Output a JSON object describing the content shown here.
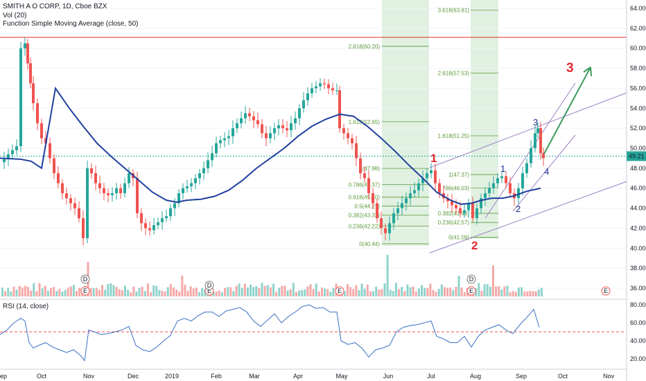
{
  "legend": {
    "title": "SMITH A O CORP, 1D, Cboe BZX",
    "volume": "Vol (20)",
    "sma": "Function Simple Moving Average (close, 50)",
    "rsi": "RSI (14, close)"
  },
  "price_axis": {
    "ticks": [
      "64.00",
      "62.00",
      "60.00",
      "58.00",
      "56.00",
      "54.00",
      "52.00",
      "50.00",
      "48.00",
      "46.00",
      "44.00",
      "42.00",
      "40.00",
      "38.00",
      "36.00"
    ],
    "last_price": "49.21"
  },
  "rsi_axis": {
    "ticks": [
      "80.00",
      "60.00",
      "40.00",
      "20.00"
    ]
  },
  "time_axis": {
    "ticks": [
      "ep",
      "Oct",
      "Nov",
      "Dec",
      "2019",
      "Feb",
      "Mar",
      "Apr",
      "May",
      "Jun",
      "Jul",
      "Aug",
      "Sep",
      "Oct",
      "Nov"
    ]
  },
  "fib_left": [
    {
      "label": "2.618(60.20)",
      "price": 60.2
    },
    {
      "label": "1.618(52.65)",
      "price": 52.65
    },
    {
      "label": "1(47.98)",
      "price": 47.98
    },
    {
      "label": "0.786(46.37)",
      "price": 46.37
    },
    {
      "label": "0.618(45.10)",
      "price": 45.1
    },
    {
      "label": "0.5(44.21)",
      "price": 44.21
    },
    {
      "label": "0.382(43.32)",
      "price": 43.32
    },
    {
      "label": "0.236(42.22)",
      "price": 42.22
    },
    {
      "label": "0(40.44)",
      "price": 40.44
    }
  ],
  "fib_right": [
    {
      "label": "3.618(63.81)",
      "price": 63.81
    },
    {
      "label": "2.618(57.53)",
      "price": 57.53
    },
    {
      "label": "1.618(51.25)",
      "price": 51.25
    },
    {
      "label": "1(47.37)",
      "price": 47.37
    },
    {
      "label": "0.786(46.03)",
      "price": 46.03
    },
    {
      "label": "0.382(43.49)",
      "price": 43.49
    },
    {
      "label": "0.236(42.57)",
      "price": 42.57
    },
    {
      "label": "0(41.09)",
      "price": 41.09
    }
  ],
  "waves": {
    "red": [
      "1",
      "2",
      "3"
    ],
    "blue": [
      "1",
      "2",
      "3",
      "4"
    ]
  },
  "event_markers": {
    "dividend": "D",
    "earnings": "E"
  },
  "colors": {
    "up": "#26a69a",
    "down": "#ef5350",
    "sma": "#1f3f9f",
    "resistance": "#e0282e",
    "price_line": "#26a69a",
    "rsi": "#3a6fc4",
    "fib": "#5b9a3a",
    "channel": "#9c7fc4",
    "arrow": "#3c9a5c",
    "price_tag": "#26a69a"
  },
  "chart_data": {
    "type": "candlestick",
    "price_ylim": [
      35,
      65
    ],
    "rsi_ylim": [
      10,
      90
    ],
    "resistance_level": 61.1,
    "last_price": 49.21,
    "rsi_midline": 50,
    "price_path": [
      [
        0,
        48.6
      ],
      [
        6,
        48.9
      ],
      [
        12,
        49.4
      ],
      [
        18,
        49.8
      ],
      [
        24,
        50.2
      ],
      [
        30,
        60.0
      ],
      [
        36,
        60.5
      ],
      [
        40,
        58.5
      ],
      [
        44,
        56.5
      ],
      [
        48,
        54.5
      ],
      [
        54,
        52.5
      ],
      [
        60,
        51.0
      ],
      [
        66,
        50.5
      ],
      [
        72,
        49.0
      ],
      [
        78,
        47.5
      ],
      [
        84,
        46.5
      ],
      [
        90,
        45.5
      ],
      [
        96,
        45.0
      ],
      [
        102,
        44.5
      ],
      [
        108,
        44.0
      ],
      [
        114,
        43.0
      ],
      [
        120,
        41.0
      ],
      [
        126,
        48.0
      ],
      [
        132,
        47.5
      ],
      [
        138,
        46.5
      ],
      [
        144,
        46.0
      ],
      [
        150,
        45.5
      ],
      [
        156,
        45.3
      ],
      [
        162,
        45.5
      ],
      [
        168,
        46.0
      ],
      [
        174,
        45.5
      ],
      [
        180,
        46.5
      ],
      [
        186,
        47.5
      ],
      [
        192,
        47.0
      ],
      [
        198,
        43.5
      ],
      [
        204,
        42.5
      ],
      [
        210,
        42.0
      ],
      [
        216,
        41.8
      ],
      [
        222,
        42.3
      ],
      [
        228,
        42.6
      ],
      [
        234,
        43.0
      ],
      [
        240,
        43.2
      ],
      [
        246,
        44.0
      ],
      [
        252,
        44.5
      ],
      [
        258,
        45.5
      ],
      [
        264,
        46.0
      ],
      [
        270,
        46.2
      ],
      [
        276,
        46.5
      ],
      [
        282,
        47.0
      ],
      [
        288,
        47.5
      ],
      [
        294,
        48.0
      ],
      [
        300,
        48.8
      ],
      [
        306,
        49.5
      ],
      [
        312,
        50.5
      ],
      [
        318,
        50.8
      ],
      [
        324,
        51.0
      ],
      [
        330,
        51.2
      ],
      [
        336,
        52.0
      ],
      [
        342,
        52.5
      ],
      [
        348,
        53.0
      ],
      [
        354,
        53.5
      ],
      [
        360,
        53.2
      ],
      [
        366,
        52.8
      ],
      [
        372,
        52.4
      ],
      [
        378,
        51.5
      ],
      [
        384,
        51.0
      ],
      [
        390,
        51.5
      ],
      [
        396,
        52.0
      ],
      [
        402,
        52.3
      ],
      [
        408,
        52.0
      ],
      [
        414,
        51.8
      ],
      [
        420,
        52.5
      ],
      [
        426,
        53.0
      ],
      [
        432,
        54.0
      ],
      [
        438,
        54.8
      ],
      [
        444,
        55.5
      ],
      [
        450,
        56.0
      ],
      [
        456,
        56.2
      ],
      [
        462,
        56.5
      ],
      [
        468,
        56.4
      ],
      [
        474,
        56.0
      ],
      [
        480,
        55.8
      ],
      [
        486,
        55.8
      ],
      [
        490,
        52.0
      ],
      [
        496,
        51.5
      ],
      [
        502,
        51.0
      ],
      [
        508,
        50.5
      ],
      [
        514,
        49.0
      ],
      [
        520,
        47.5
      ],
      [
        526,
        47.0
      ],
      [
        532,
        45.5
      ],
      [
        538,
        44.5
      ],
      [
        544,
        43.0
      ],
      [
        550,
        42.0
      ],
      [
        556,
        41.5
      ],
      [
        562,
        42.5
      ],
      [
        568,
        43.5
      ],
      [
        574,
        44.0
      ],
      [
        580,
        44.5
      ],
      [
        586,
        45.0
      ],
      [
        592,
        45.5
      ],
      [
        598,
        45.8
      ],
      [
        604,
        46.5
      ],
      [
        610,
        47.0
      ],
      [
        616,
        47.5
      ],
      [
        622,
        47.8
      ],
      [
        628,
        46.5
      ],
      [
        634,
        45.5
      ],
      [
        640,
        45.0
      ],
      [
        646,
        44.7
      ],
      [
        652,
        44.3
      ],
      [
        658,
        44.0
      ],
      [
        664,
        43.5
      ],
      [
        670,
        43.8
      ],
      [
        676,
        44.5
      ],
      [
        682,
        43.0
      ],
      [
        688,
        44.0
      ],
      [
        694,
        45.0
      ],
      [
        700,
        45.5
      ],
      [
        706,
        46.0
      ],
      [
        712,
        46.5
      ],
      [
        718,
        47.0
      ],
      [
        724,
        47.2
      ],
      [
        730,
        46.5
      ],
      [
        736,
        45.5
      ],
      [
        742,
        45.0
      ],
      [
        748,
        46.0
      ],
      [
        754,
        47.5
      ],
      [
        760,
        48.5
      ],
      [
        766,
        50.0
      ],
      [
        772,
        51.5
      ],
      [
        776,
        52.0
      ],
      [
        780,
        49.5
      ],
      [
        784,
        49.0
      ]
    ],
    "sma50": [
      [
        0,
        49.0
      ],
      [
        30,
        48.9
      ],
      [
        45,
        48.7
      ],
      [
        60,
        48.0
      ],
      [
        80,
        56.0
      ],
      [
        100,
        54.0
      ],
      [
        120,
        52.2
      ],
      [
        140,
        50.5
      ],
      [
        160,
        49.2
      ],
      [
        180,
        48.0
      ],
      [
        200,
        46.8
      ],
      [
        220,
        45.6
      ],
      [
        240,
        44.8
      ],
      [
        255,
        44.6
      ],
      [
        270,
        44.8
      ],
      [
        290,
        44.9
      ],
      [
        310,
        45.2
      ],
      [
        330,
        45.8
      ],
      [
        350,
        46.8
      ],
      [
        370,
        48.0
      ],
      [
        390,
        49.0
      ],
      [
        410,
        50.0
      ],
      [
        430,
        51.2
      ],
      [
        450,
        52.2
      ],
      [
        470,
        52.9
      ],
      [
        490,
        53.4
      ],
      [
        510,
        53.2
      ],
      [
        530,
        52.2
      ],
      [
        550,
        51.0
      ],
      [
        570,
        49.7
      ],
      [
        590,
        48.3
      ],
      [
        610,
        47.0
      ],
      [
        630,
        45.6
      ],
      [
        650,
        44.8
      ],
      [
        665,
        44.4
      ],
      [
        680,
        44.5
      ],
      [
        695,
        44.8
      ],
      [
        710,
        45.0
      ],
      [
        725,
        45.0
      ],
      [
        740,
        45.2
      ],
      [
        760,
        45.7
      ],
      [
        780,
        46.0
      ]
    ],
    "rsi_path": [
      [
        0,
        47
      ],
      [
        10,
        52
      ],
      [
        20,
        60
      ],
      [
        30,
        65
      ],
      [
        36,
        62
      ],
      [
        42,
        38
      ],
      [
        48,
        32
      ],
      [
        56,
        35
      ],
      [
        66,
        38
      ],
      [
        76,
        33
      ],
      [
        86,
        30
      ],
      [
        96,
        27
      ],
      [
        106,
        30
      ],
      [
        116,
        24
      ],
      [
        122,
        18
      ],
      [
        128,
        52
      ],
      [
        136,
        50
      ],
      [
        146,
        47
      ],
      [
        156,
        48
      ],
      [
        166,
        50
      ],
      [
        176,
        52
      ],
      [
        186,
        56
      ],
      [
        196,
        35
      ],
      [
        206,
        30
      ],
      [
        216,
        28
      ],
      [
        226,
        33
      ],
      [
        236,
        40
      ],
      [
        246,
        46
      ],
      [
        256,
        62
      ],
      [
        266,
        65
      ],
      [
        276,
        62
      ],
      [
        286,
        68
      ],
      [
        296,
        72
      ],
      [
        306,
        72
      ],
      [
        316,
        67
      ],
      [
        326,
        73
      ],
      [
        336,
        75
      ],
      [
        346,
        77
      ],
      [
        356,
        72
      ],
      [
        366,
        62
      ],
      [
        376,
        56
      ],
      [
        386,
        63
      ],
      [
        396,
        70
      ],
      [
        406,
        60
      ],
      [
        416,
        67
      ],
      [
        426,
        72
      ],
      [
        436,
        78
      ],
      [
        446,
        80
      ],
      [
        456,
        76
      ],
      [
        466,
        77
      ],
      [
        476,
        72
      ],
      [
        486,
        72
      ],
      [
        492,
        40
      ],
      [
        502,
        36
      ],
      [
        512,
        38
      ],
      [
        522,
        32
      ],
      [
        532,
        22
      ],
      [
        542,
        30
      ],
      [
        552,
        32
      ],
      [
        562,
        35
      ],
      [
        572,
        50
      ],
      [
        582,
        55
      ],
      [
        592,
        57
      ],
      [
        602,
        58
      ],
      [
        612,
        60
      ],
      [
        622,
        62
      ],
      [
        630,
        45
      ],
      [
        640,
        42
      ],
      [
        650,
        38
      ],
      [
        660,
        38
      ],
      [
        670,
        45
      ],
      [
        680,
        33
      ],
      [
        690,
        45
      ],
      [
        700,
        52
      ],
      [
        710,
        55
      ],
      [
        720,
        58
      ],
      [
        730,
        52
      ],
      [
        740,
        48
      ],
      [
        750,
        58
      ],
      [
        760,
        66
      ],
      [
        770,
        75
      ],
      [
        778,
        55
      ]
    ],
    "volume_bars_count": 190
  }
}
